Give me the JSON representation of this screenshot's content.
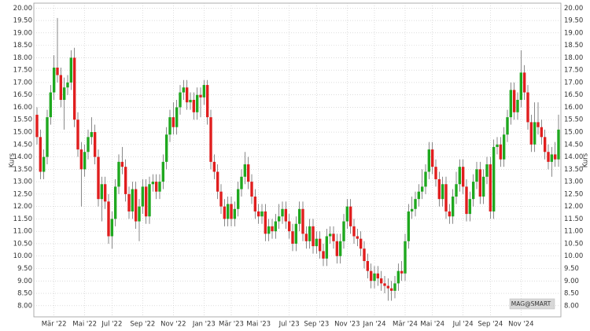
{
  "chart_data": {
    "type": "candlestick",
    "y_label": "Kurs",
    "watermark": "MAG@SMART",
    "up_color": "#1fa81f",
    "down_color": "#e01e1e",
    "grid": true,
    "ylim": [
      7.55,
      20.2
    ],
    "yticks": [
      {
        "value": 8,
        "label": "8.00"
      },
      {
        "value": 8.5,
        "label": "8.50"
      },
      {
        "value": 9,
        "label": "9.00"
      },
      {
        "value": 9.5,
        "label": "9.50"
      },
      {
        "value": 10,
        "label": "10.00"
      },
      {
        "value": 10.5,
        "label": "10.50"
      },
      {
        "value": 11,
        "label": "11.00"
      },
      {
        "value": 11.5,
        "label": "11.50"
      },
      {
        "value": 12,
        "label": "12.00"
      },
      {
        "value": 12.5,
        "label": "12.50"
      },
      {
        "value": 13,
        "label": "13.00"
      },
      {
        "value": 13.5,
        "label": "13.50"
      },
      {
        "value": 14,
        "label": "14.00"
      },
      {
        "value": 14.5,
        "label": "14.50"
      },
      {
        "value": 15,
        "label": "15.00"
      },
      {
        "value": 15.5,
        "label": "15.50"
      },
      {
        "value": 16,
        "label": "16.00"
      },
      {
        "value": 16.5,
        "label": "16.50"
      },
      {
        "value": 17,
        "label": "17.00"
      },
      {
        "value": 17.5,
        "label": "17.50"
      },
      {
        "value": 18,
        "label": "18.00"
      },
      {
        "value": 18.5,
        "label": "18.50"
      },
      {
        "value": 19,
        "label": "19.00"
      },
      {
        "value": 19.5,
        "label": "19.50"
      },
      {
        "value": 20,
        "label": "20.00"
      }
    ],
    "categories": [
      null,
      null,
      null,
      null,
      null,
      "Mär '22",
      null,
      null,
      null,
      null,
      null,
      null,
      null,
      null,
      "Mai '22",
      null,
      null,
      null,
      null,
      null,
      null,
      null,
      "Jul '22",
      null,
      null,
      null,
      null,
      null,
      null,
      null,
      null,
      "Sep '22",
      null,
      null,
      null,
      null,
      null,
      null,
      null,
      null,
      "Nov '22",
      null,
      null,
      null,
      null,
      null,
      null,
      null,
      null,
      "Jan '23",
      null,
      null,
      null,
      null,
      null,
      null,
      null,
      "Mär '23",
      null,
      null,
      null,
      null,
      null,
      null,
      null,
      "Mai '23",
      null,
      null,
      null,
      null,
      null,
      null,
      null,
      null,
      "Jul '23",
      null,
      null,
      null,
      null,
      null,
      null,
      null,
      "Sep '23",
      null,
      null,
      null,
      null,
      null,
      null,
      null,
      null,
      "Nov '23",
      null,
      null,
      null,
      null,
      null,
      null,
      null,
      "Jan '24",
      null,
      null,
      null,
      null,
      null,
      null,
      null,
      null,
      "Mär '24",
      null,
      null,
      null,
      null,
      null,
      null,
      null,
      "Mai '24",
      null,
      null,
      null,
      null,
      null,
      null,
      null,
      null,
      "Jul '24",
      null,
      null,
      null,
      null,
      null,
      null,
      null,
      "Sep '24",
      null,
      null,
      null,
      null,
      null,
      null,
      null,
      null,
      "Nov '24",
      null,
      null,
      null,
      null,
      null,
      null,
      null,
      null,
      null,
      null,
      null
    ],
    "open": [
      15.7,
      14.8,
      13.4,
      14.0,
      15.6,
      16.6,
      17.6,
      17.3,
      16.3,
      16.8,
      17.0,
      18.0,
      15.5,
      14.3,
      13.5,
      14.2,
      14.8,
      15.0,
      14.0,
      12.3,
      12.9,
      12.2,
      10.8,
      11.5,
      12.8,
      13.8,
      13.6,
      12.5,
      11.8,
      12.7,
      11.4,
      12.0,
      12.8,
      11.6,
      12.9,
      13.0,
      12.6,
      13.0,
      13.8,
      14.9,
      15.6,
      15.2,
      16.0,
      16.6,
      16.8,
      16.2,
      16.3,
      15.8,
      16.5,
      16.4,
      16.9,
      15.6,
      13.8,
      13.4,
      12.6,
      12.0,
      11.5,
      12.1,
      11.5,
      11.9,
      12.7,
      13.2,
      13.7,
      13.0,
      12.4,
      11.8,
      11.6,
      11.8,
      10.9,
      11.2,
      11.0,
      11.4,
      11.6,
      11.9,
      11.4,
      11.0,
      10.5,
      11.3,
      11.9,
      10.9,
      10.6,
      11.2,
      10.4,
      10.7,
      10.2,
      9.9,
      10.8,
      10.9,
      10.6,
      10.0,
      10.6,
      11.4,
      12.0,
      11.2,
      10.8,
      10.7,
      10.3,
      9.8,
      9.4,
      9.0,
      9.3,
      9.1,
      8.9,
      8.8,
      8.7,
      8.6,
      8.9,
      9.4,
      9.3,
      10.6,
      11.8,
      11.9,
      12.3,
      12.6,
      12.8,
      13.4,
      14.3,
      13.6,
      13.1,
      12.3,
      12.9,
      11.8,
      11.6,
      12.4,
      12.9,
      13.6,
      12.8,
      11.7,
      12.3,
      13.0,
      13.5,
      12.4,
      13.2,
      13.7,
      11.8,
      14.4,
      14.5,
      13.9,
      14.9,
      15.6,
      16.7,
      15.8,
      16.3,
      17.4,
      16.6,
      15.4,
      14.5,
      15.4,
      15.2,
      14.8,
      14.2,
      13.8,
      14.1,
      13.9
    ],
    "high": [
      16.0,
      15.1,
      14.3,
      15.9,
      16.9,
      18.1,
      19.6,
      17.6,
      17.2,
      17.3,
      18.3,
      18.4,
      15.8,
      14.6,
      14.5,
      15.1,
      15.6,
      15.3,
      14.3,
      13.2,
      13.2,
      12.5,
      11.8,
      13.1,
      14.1,
      14.4,
      13.9,
      12.8,
      13.0,
      13.0,
      12.3,
      13.1,
      13.1,
      13.2,
      13.3,
      13.3,
      13.3,
      14.1,
      15.2,
      15.9,
      16.2,
      16.3,
      16.9,
      17.1,
      17.1,
      16.6,
      16.6,
      16.8,
      16.8,
      17.1,
      17.1,
      15.9,
      14.1,
      13.7,
      12.9,
      12.3,
      12.4,
      12.4,
      12.2,
      13.0,
      13.5,
      14.2,
      14.0,
      13.3,
      12.7,
      12.1,
      12.1,
      12.1,
      11.5,
      11.5,
      11.7,
      12.1,
      12.2,
      12.2,
      11.7,
      11.3,
      11.6,
      12.2,
      12.2,
      11.2,
      11.5,
      11.5,
      11.0,
      11.0,
      10.5,
      11.1,
      11.2,
      11.2,
      10.9,
      10.9,
      11.7,
      12.3,
      12.3,
      11.5,
      11.1,
      11.0,
      10.6,
      10.1,
      9.7,
      9.6,
      9.6,
      9.4,
      9.2,
      9.1,
      9.0,
      9.2,
      9.7,
      9.8,
      10.9,
      12.1,
      12.4,
      12.6,
      12.9,
      13.5,
      13.7,
      14.6,
      14.6,
      13.9,
      13.4,
      13.2,
      13.2,
      12.1,
      12.7,
      13.4,
      13.9,
      13.9,
      13.1,
      12.6,
      13.3,
      13.8,
      13.8,
      13.5,
      14.0,
      14.0,
      14.7,
      14.8,
      14.8,
      15.2,
      15.9,
      17.0,
      17.0,
      16.6,
      18.3,
      17.7,
      16.9,
      15.7,
      16.2,
      16.2,
      15.5,
      15.1,
      14.5,
      14.4,
      14.6,
      15.7
    ],
    "low": [
      14.5,
      13.1,
      13.1,
      13.7,
      15.3,
      16.3,
      17.0,
      16.0,
      15.1,
      16.5,
      16.7,
      15.2,
      14.0,
      12.0,
      13.2,
      13.9,
      14.5,
      13.7,
      12.0,
      11.4,
      11.9,
      10.5,
      10.3,
      11.2,
      12.5,
      13.3,
      12.2,
      11.5,
      11.5,
      11.1,
      10.6,
      11.7,
      11.3,
      11.3,
      12.6,
      12.3,
      12.3,
      12.7,
      13.5,
      14.6,
      14.9,
      14.9,
      15.7,
      16.3,
      15.9,
      15.9,
      15.5,
      15.5,
      15.6,
      16.1,
      15.3,
      13.5,
      13.1,
      12.3,
      11.7,
      11.2,
      11.2,
      11.2,
      11.2,
      11.6,
      12.4,
      12.9,
      12.7,
      12.1,
      11.5,
      11.3,
      11.3,
      10.6,
      10.6,
      10.7,
      10.7,
      11.1,
      11.3,
      11.1,
      10.7,
      10.2,
      10.2,
      11.0,
      10.6,
      10.3,
      10.3,
      10.1,
      10.1,
      9.9,
      9.6,
      9.6,
      10.5,
      10.3,
      9.7,
      9.7,
      10.3,
      11.1,
      10.9,
      10.5,
      10.4,
      10.0,
      9.5,
      9.1,
      8.7,
      8.7,
      8.8,
      8.6,
      8.5,
      8.2,
      8.2,
      8.3,
      8.6,
      9.0,
      9.0,
      10.3,
      11.5,
      11.6,
      12.0,
      12.3,
      12.5,
      13.1,
      13.3,
      12.8,
      12.0,
      12.0,
      11.5,
      11.3,
      11.3,
      12.1,
      12.6,
      12.5,
      11.4,
      11.4,
      12.0,
      12.7,
      12.1,
      12.1,
      12.9,
      11.5,
      11.5,
      14.1,
      13.6,
      13.6,
      14.6,
      15.3,
      15.5,
      15.5,
      16.0,
      16.3,
      15.1,
      14.2,
      14.2,
      14.9,
      14.5,
      13.9,
      13.5,
      13.2,
      13.6,
      13.6
    ],
    "close": [
      14.8,
      13.4,
      14.0,
      15.6,
      16.6,
      17.6,
      17.3,
      16.3,
      16.8,
      17.0,
      18.0,
      15.5,
      14.3,
      13.5,
      14.2,
      14.8,
      15.0,
      14.0,
      12.3,
      12.9,
      12.2,
      10.8,
      11.5,
      12.8,
      13.8,
      13.6,
      12.5,
      11.8,
      12.7,
      11.4,
      12.0,
      12.8,
      11.6,
      12.9,
      13.0,
      12.6,
      13.0,
      13.8,
      14.9,
      15.6,
      15.2,
      16.0,
      16.6,
      16.8,
      16.2,
      16.3,
      15.8,
      16.5,
      16.4,
      16.9,
      15.6,
      13.8,
      13.4,
      12.6,
      12.0,
      11.5,
      12.1,
      11.5,
      11.9,
      12.7,
      13.2,
      13.7,
      13.0,
      12.4,
      11.8,
      11.6,
      11.8,
      10.9,
      11.2,
      11.0,
      11.4,
      11.6,
      11.9,
      11.4,
      11.0,
      10.5,
      11.3,
      11.9,
      10.9,
      10.6,
      11.2,
      10.4,
      10.7,
      10.2,
      9.9,
      10.8,
      10.9,
      10.6,
      10.0,
      10.6,
      11.4,
      12.0,
      11.2,
      10.8,
      10.7,
      10.3,
      9.8,
      9.4,
      9.0,
      9.3,
      9.1,
      8.9,
      8.8,
      8.7,
      8.6,
      8.9,
      9.4,
      9.3,
      10.6,
      11.8,
      11.9,
      12.3,
      12.6,
      12.8,
      13.4,
      14.3,
      13.6,
      13.1,
      12.3,
      12.9,
      11.8,
      11.6,
      12.4,
      12.9,
      13.6,
      12.8,
      11.7,
      12.3,
      13.0,
      13.5,
      12.4,
      13.2,
      13.7,
      11.8,
      14.4,
      14.5,
      13.9,
      14.9,
      15.6,
      16.7,
      15.8,
      16.3,
      17.4,
      16.6,
      15.4,
      14.5,
      15.4,
      15.2,
      14.8,
      14.2,
      13.8,
      14.1,
      13.9,
      15.1
    ]
  }
}
